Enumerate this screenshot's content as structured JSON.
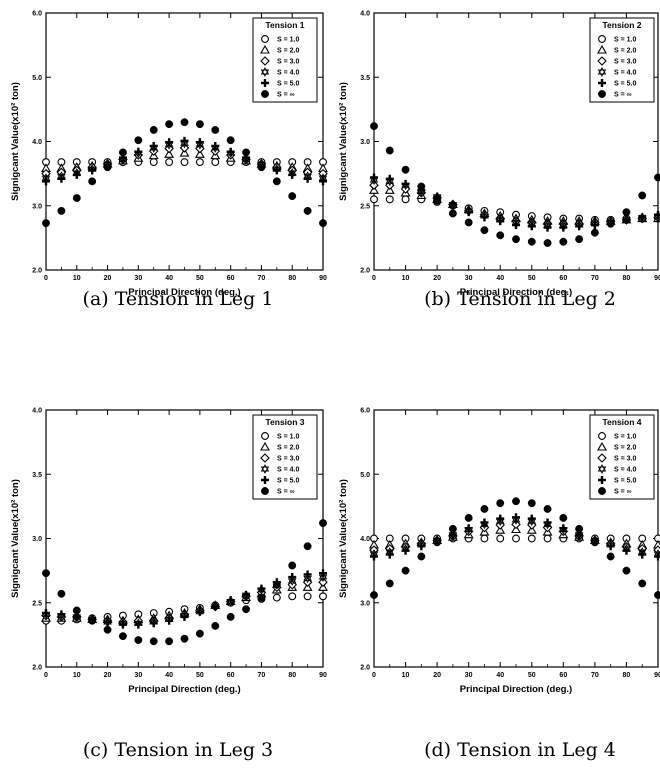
{
  "chart_data": [
    {
      "type": "scatter",
      "caption": "(a) Tension in Leg 1",
      "legend_title": "Tension 1",
      "xlabel": "Principal Direction (deg.)",
      "ylabel": "Signigcant Value(x10² ton)",
      "xlim": [
        0,
        90
      ],
      "ylim": [
        2.0,
        6.0
      ],
      "x_ticks": [
        0,
        10,
        20,
        30,
        40,
        50,
        60,
        70,
        80,
        90
      ],
      "y_ticks": [
        "2.0",
        "3.0",
        "4.0",
        "5.0",
        "6.0"
      ],
      "y_tick_values": [
        2.0,
        3.0,
        4.0,
        5.0,
        6.0
      ],
      "x": [
        0,
        5,
        10,
        15,
        20,
        25,
        30,
        35,
        40,
        45,
        50,
        55,
        60,
        65,
        70,
        75,
        80,
        85,
        90
      ],
      "series": [
        {
          "name": "S = 1.0",
          "marker": "circle-open",
          "values": [
            3.68,
            3.68,
            3.68,
            3.68,
            3.68,
            3.68,
            3.68,
            3.68,
            3.68,
            3.68,
            3.68,
            3.68,
            3.68,
            3.68,
            3.68,
            3.68,
            3.68,
            3.68,
            3.68
          ]
        },
        {
          "name": "S = 2.0",
          "marker": "triangle-open",
          "values": [
            3.58,
            3.58,
            3.6,
            3.62,
            3.65,
            3.7,
            3.74,
            3.78,
            3.8,
            3.82,
            3.8,
            3.78,
            3.74,
            3.7,
            3.65,
            3.62,
            3.6,
            3.58,
            3.58
          ]
        },
        {
          "name": "S = 3.0",
          "marker": "diamond-open",
          "values": [
            3.5,
            3.52,
            3.55,
            3.6,
            3.65,
            3.72,
            3.79,
            3.85,
            3.89,
            3.9,
            3.89,
            3.85,
            3.79,
            3.72,
            3.65,
            3.6,
            3.55,
            3.52,
            3.5
          ]
        },
        {
          "name": "S = 4.0",
          "marker": "star-open",
          "values": [
            3.43,
            3.46,
            3.51,
            3.57,
            3.64,
            3.73,
            3.82,
            3.9,
            3.95,
            3.97,
            3.95,
            3.9,
            3.82,
            3.73,
            3.64,
            3.57,
            3.51,
            3.46,
            3.43
          ]
        },
        {
          "name": "S = 5.0",
          "marker": "plus",
          "values": [
            3.38,
            3.42,
            3.48,
            3.55,
            3.63,
            3.74,
            3.84,
            3.93,
            3.99,
            4.01,
            3.99,
            3.93,
            3.84,
            3.74,
            3.63,
            3.55,
            3.48,
            3.42,
            3.38
          ]
        },
        {
          "name": "S = ∞",
          "marker": "circle-filled",
          "values": [
            2.73,
            2.92,
            3.12,
            3.38,
            3.6,
            3.83,
            4.02,
            4.18,
            4.27,
            4.3,
            4.27,
            4.18,
            4.02,
            3.83,
            3.6,
            3.38,
            3.15,
            2.92,
            2.73
          ]
        }
      ]
    },
    {
      "type": "scatter",
      "caption": "(b) Tension in Leg 2",
      "legend_title": "Tension 2",
      "xlabel": "Principal Direction (deg.)",
      "ylabel": "Signigcant Value(x10² ton)",
      "xlim": [
        0,
        90
      ],
      "ylim": [
        2.0,
        4.0
      ],
      "x_ticks": [
        0,
        10,
        20,
        30,
        40,
        50,
        60,
        70,
        80,
        90
      ],
      "y_ticks": [
        "2.0",
        "2.5",
        "3.0",
        "3.5",
        "4.0"
      ],
      "y_tick_values": [
        2.0,
        2.5,
        3.0,
        3.5,
        4.0
      ],
      "x": [
        0,
        5,
        10,
        15,
        20,
        25,
        30,
        35,
        40,
        45,
        50,
        55,
        60,
        65,
        70,
        75,
        80,
        85,
        90
      ],
      "series": [
        {
          "name": "S = 1.0",
          "marker": "circle-open",
          "values": [
            2.55,
            2.55,
            2.55,
            2.55,
            2.53,
            2.5,
            2.48,
            2.46,
            2.45,
            2.43,
            2.42,
            2.41,
            2.4,
            2.4,
            2.39,
            2.39,
            2.4,
            2.4,
            2.4
          ]
        },
        {
          "name": "S = 2.0",
          "marker": "triangle-open",
          "values": [
            2.62,
            2.62,
            2.6,
            2.58,
            2.55,
            2.51,
            2.47,
            2.44,
            2.42,
            2.4,
            2.39,
            2.38,
            2.38,
            2.38,
            2.38,
            2.38,
            2.39,
            2.4,
            2.4
          ]
        },
        {
          "name": "S = 3.0",
          "marker": "diamond-open",
          "values": [
            2.66,
            2.66,
            2.63,
            2.6,
            2.56,
            2.51,
            2.46,
            2.43,
            2.4,
            2.38,
            2.37,
            2.36,
            2.36,
            2.36,
            2.37,
            2.38,
            2.39,
            2.4,
            2.41
          ]
        },
        {
          "name": "S = 4.0",
          "marker": "star-open",
          "values": [
            2.7,
            2.69,
            2.66,
            2.61,
            2.57,
            2.51,
            2.46,
            2.42,
            2.39,
            2.37,
            2.36,
            2.35,
            2.35,
            2.35,
            2.36,
            2.37,
            2.39,
            2.41,
            2.42
          ]
        },
        {
          "name": "S = 5.0",
          "marker": "plus",
          "values": [
            2.72,
            2.71,
            2.67,
            2.62,
            2.57,
            2.51,
            2.45,
            2.41,
            2.38,
            2.35,
            2.34,
            2.33,
            2.33,
            2.34,
            2.35,
            2.37,
            2.39,
            2.41,
            2.43
          ]
        },
        {
          "name": "S = ∞",
          "marker": "circle-filled",
          "values": [
            3.12,
            2.93,
            2.78,
            2.65,
            2.54,
            2.44,
            2.37,
            2.31,
            2.27,
            2.24,
            2.22,
            2.21,
            2.22,
            2.24,
            2.29,
            2.36,
            2.45,
            2.58,
            2.72
          ]
        }
      ]
    },
    {
      "type": "scatter",
      "caption": "(c) Tension in Leg 3",
      "legend_title": "Tension 3",
      "xlabel": "Principal Direction (deg.)",
      "ylabel": "Signigcant Value(x10² ton)",
      "xlim": [
        0,
        90
      ],
      "ylim": [
        2.0,
        4.0
      ],
      "x_ticks": [
        0,
        10,
        20,
        30,
        40,
        50,
        60,
        70,
        80,
        90
      ],
      "y_ticks": [
        "2.0",
        "2.5",
        "3.0",
        "3.5",
        "4.0"
      ],
      "y_tick_values": [
        2.0,
        2.5,
        3.0,
        3.5,
        4.0
      ],
      "x": [
        0,
        5,
        10,
        15,
        20,
        25,
        30,
        35,
        40,
        45,
        50,
        55,
        60,
        65,
        70,
        75,
        80,
        85,
        90
      ],
      "series": [
        {
          "name": "S = 1.0",
          "marker": "circle-open",
          "values": [
            2.36,
            2.36,
            2.37,
            2.38,
            2.39,
            2.4,
            2.41,
            2.42,
            2.43,
            2.45,
            2.46,
            2.48,
            2.5,
            2.52,
            2.53,
            2.54,
            2.55,
            2.55,
            2.55
          ]
        },
        {
          "name": "S = 2.0",
          "marker": "triangle-open",
          "values": [
            2.38,
            2.38,
            2.38,
            2.37,
            2.37,
            2.36,
            2.37,
            2.38,
            2.4,
            2.42,
            2.45,
            2.48,
            2.51,
            2.54,
            2.57,
            2.6,
            2.62,
            2.62,
            2.62
          ]
        },
        {
          "name": "S = 3.0",
          "marker": "diamond-open",
          "values": [
            2.4,
            2.39,
            2.39,
            2.37,
            2.36,
            2.35,
            2.36,
            2.36,
            2.38,
            2.41,
            2.44,
            2.47,
            2.51,
            2.55,
            2.58,
            2.62,
            2.64,
            2.66,
            2.66
          ]
        },
        {
          "name": "S = 4.0",
          "marker": "star-open",
          "values": [
            2.41,
            2.4,
            2.39,
            2.37,
            2.35,
            2.34,
            2.34,
            2.35,
            2.37,
            2.4,
            2.43,
            2.47,
            2.51,
            2.56,
            2.6,
            2.64,
            2.67,
            2.69,
            2.7
          ]
        },
        {
          "name": "S = 5.0",
          "marker": "plus",
          "values": [
            2.42,
            2.41,
            2.39,
            2.37,
            2.35,
            2.33,
            2.33,
            2.34,
            2.36,
            2.39,
            2.43,
            2.47,
            2.52,
            2.56,
            2.61,
            2.66,
            2.7,
            2.72,
            2.73
          ]
        },
        {
          "name": "S = ∞",
          "marker": "circle-filled",
          "values": [
            2.73,
            2.57,
            2.44,
            2.36,
            2.29,
            2.24,
            2.21,
            2.2,
            2.2,
            2.22,
            2.26,
            2.32,
            2.39,
            2.45,
            2.54,
            2.64,
            2.79,
            2.94,
            3.12
          ]
        }
      ]
    },
    {
      "type": "scatter",
      "caption": "(d) Tension in Leg 4",
      "legend_title": "Tension 4",
      "xlabel": "Principal Direction (deg.)",
      "ylabel": "Signigcant Value(x10² ton)",
      "xlim": [
        0,
        90
      ],
      "ylim": [
        2.0,
        6.0
      ],
      "x_ticks": [
        0,
        10,
        20,
        30,
        40,
        50,
        60,
        70,
        80,
        90
      ],
      "y_ticks": [
        "2.0",
        "3.0",
        "4.0",
        "5.0",
        "6.0"
      ],
      "y_tick_values": [
        2.0,
        3.0,
        4.0,
        5.0,
        6.0
      ],
      "x": [
        0,
        5,
        10,
        15,
        20,
        25,
        30,
        35,
        40,
        45,
        50,
        55,
        60,
        65,
        70,
        75,
        80,
        85,
        90
      ],
      "series": [
        {
          "name": "S = 1.0",
          "marker": "circle-open",
          "values": [
            4.0,
            4.0,
            4.0,
            4.0,
            4.0,
            4.0,
            4.0,
            4.0,
            4.0,
            4.0,
            4.0,
            4.0,
            4.0,
            4.0,
            4.0,
            4.0,
            4.0,
            4.0,
            4.0
          ]
        },
        {
          "name": "S = 2.0",
          "marker": "triangle-open",
          "values": [
            3.9,
            3.9,
            3.92,
            3.94,
            3.97,
            4.02,
            4.06,
            4.1,
            4.13,
            4.14,
            4.13,
            4.1,
            4.06,
            4.02,
            3.97,
            3.94,
            3.92,
            3.9,
            3.9
          ]
        },
        {
          "name": "S = 3.0",
          "marker": "diamond-open",
          "values": [
            3.82,
            3.84,
            3.87,
            3.92,
            3.97,
            4.04,
            4.11,
            4.17,
            4.21,
            4.22,
            4.21,
            4.17,
            4.11,
            4.04,
            3.97,
            3.92,
            3.87,
            3.84,
            3.82
          ]
        },
        {
          "name": "S = 4.0",
          "marker": "star-open",
          "values": [
            3.76,
            3.79,
            3.84,
            3.9,
            3.97,
            4.06,
            4.14,
            4.22,
            4.27,
            4.29,
            4.27,
            4.22,
            4.14,
            4.06,
            3.97,
            3.9,
            3.84,
            3.79,
            3.76
          ]
        },
        {
          "name": "S = 5.0",
          "marker": "plus",
          "values": [
            3.72,
            3.75,
            3.81,
            3.88,
            3.96,
            4.06,
            4.16,
            4.25,
            4.31,
            4.33,
            4.31,
            4.25,
            4.16,
            4.06,
            3.96,
            3.88,
            3.81,
            3.75,
            3.72
          ]
        },
        {
          "name": "S = ∞",
          "marker": "circle-filled",
          "values": [
            3.12,
            3.3,
            3.5,
            3.72,
            3.94,
            4.15,
            4.32,
            4.46,
            4.55,
            4.58,
            4.55,
            4.46,
            4.32,
            4.15,
            3.94,
            3.72,
            3.5,
            3.3,
            3.12
          ]
        }
      ]
    }
  ]
}
